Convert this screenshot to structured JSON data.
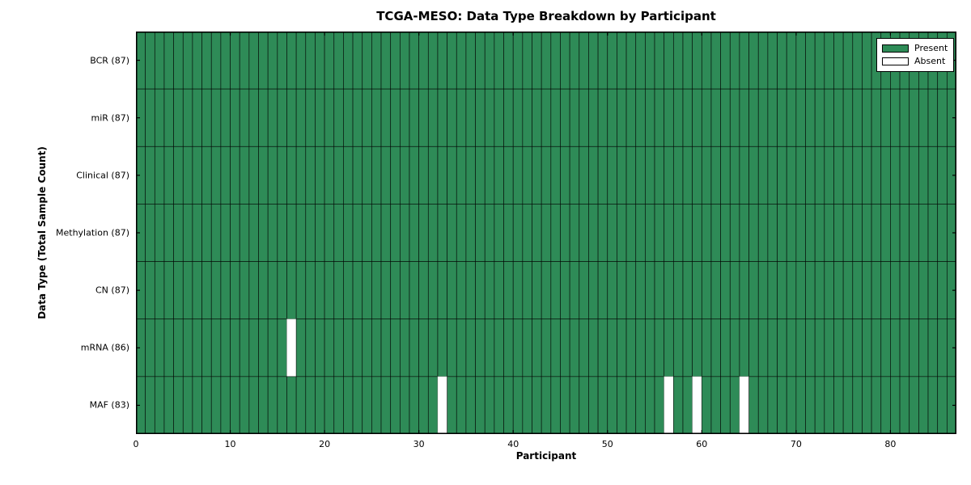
{
  "chart_data": {
    "type": "heatmap",
    "title": "TCGA-MESO: Data Type Breakdown by Participant",
    "xlabel": "Participant",
    "ylabel": "Data Type (Total Sample Count)",
    "xlim": [
      0,
      87
    ],
    "n_participants": 87,
    "x_ticks": [
      0,
      10,
      20,
      30,
      40,
      50,
      60,
      70,
      80
    ],
    "grid": true,
    "legend_position": "upper right",
    "rows": [
      {
        "label": "BCR (87)",
        "name": "BCR",
        "present_count": 87,
        "absent_participants": []
      },
      {
        "label": "miR (87)",
        "name": "miR",
        "present_count": 87,
        "absent_participants": []
      },
      {
        "label": "Clinical (87)",
        "name": "Clinical",
        "present_count": 87,
        "absent_participants": []
      },
      {
        "label": "Methylation (87)",
        "name": "Methylation",
        "present_count": 87,
        "absent_participants": []
      },
      {
        "label": "CN (87)",
        "name": "CN",
        "present_count": 87,
        "absent_participants": []
      },
      {
        "label": "mRNA (86)",
        "name": "mRNA",
        "present_count": 86,
        "absent_participants": [
          16
        ]
      },
      {
        "label": "MAF (83)",
        "name": "MAF",
        "present_count": 83,
        "absent_participants": [
          32,
          56,
          59,
          64
        ]
      }
    ],
    "legend": [
      {
        "label": "Present",
        "color": "#2e8b57"
      },
      {
        "label": "Absent",
        "color": "#ffffff"
      }
    ],
    "colors": {
      "present": "#2e8b57",
      "absent": "#ffffff",
      "cell_edge": "#000000",
      "absent_edge": "#aaaaaa",
      "spine": "#000000",
      "background": "#ffffff"
    }
  }
}
